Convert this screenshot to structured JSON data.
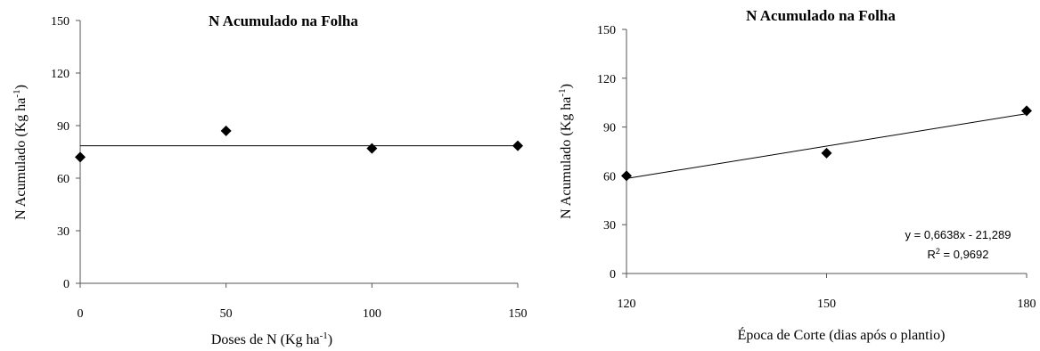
{
  "chart_data": [
    {
      "type": "scatter",
      "title": "N Acumulado na Folha",
      "ylabel": "N Acumulado  (Kg ha",
      "ylabel_sup": "-1",
      "ylabel_end": ")",
      "xlabel": "Doses de N (Kg ha",
      "xlabel_sup": "-1",
      "xlabel_end": ")",
      "xlim": [
        0,
        150
      ],
      "ylim": [
        0,
        150
      ],
      "xticks": [
        0,
        50,
        100,
        150
      ],
      "yticks": [
        0,
        30,
        60,
        90,
        120,
        150
      ],
      "x": [
        0,
        50,
        100,
        150
      ],
      "y": [
        72,
        87,
        77,
        78.5
      ],
      "marker": "diamond",
      "trendline": {
        "type": "constant",
        "value": 78.5
      },
      "grid": false,
      "legend": "none"
    },
    {
      "type": "scatter",
      "title": "N Acumulado na Folha",
      "ylabel": "N Acumulado (Kg ha",
      "ylabel_sup": "-1",
      "ylabel_end": ")",
      "xlabel": "Época de Corte (dias após o plantio)",
      "xlim": [
        120,
        180
      ],
      "ylim": [
        0,
        150
      ],
      "xticks": [
        120,
        150,
        180
      ],
      "yticks": [
        0,
        30,
        60,
        90,
        120,
        150
      ],
      "x": [
        120,
        150,
        180
      ],
      "y": [
        60,
        74,
        100
      ],
      "marker": "diamond",
      "trendline": {
        "type": "linear",
        "slope": 0.6638,
        "intercept": -21.289
      },
      "equation": "y = 0,6638x - 21,289",
      "r2_prefix": "R",
      "r2_sup": "2",
      "r2_value": " = 0,9692",
      "grid": false,
      "legend": "none"
    }
  ]
}
